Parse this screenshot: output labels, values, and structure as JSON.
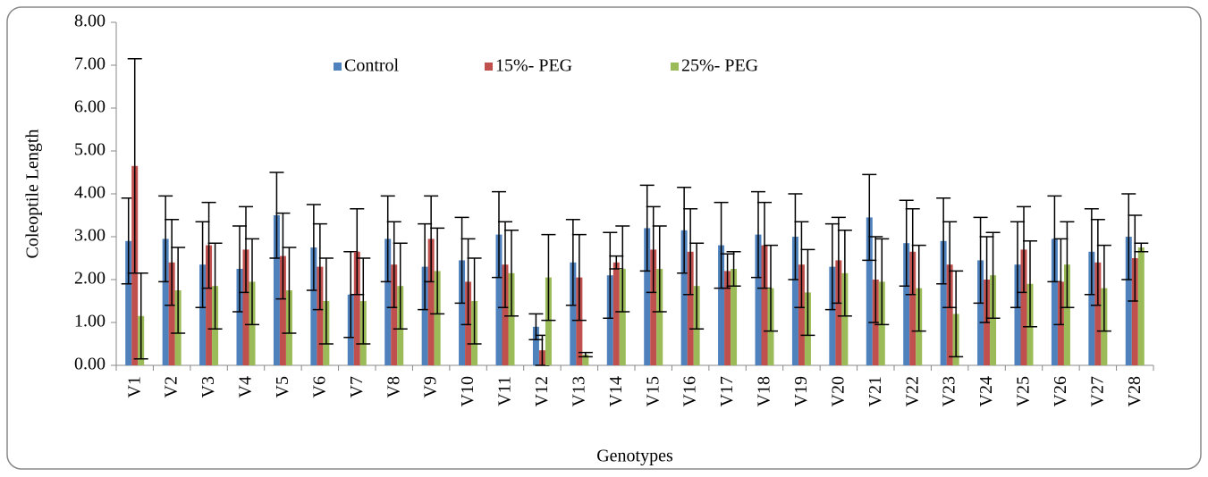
{
  "chart_data": {
    "type": "bar",
    "y_label": "Coleoptile  Length",
    "x_label": "Genotypes",
    "categories": [
      "V1",
      "V2",
      "V3",
      "V4",
      "V5",
      "V6",
      "V7",
      "V8",
      "V9",
      "V10",
      "V11",
      "V12",
      "V13",
      "V14",
      "V15",
      "V16",
      "V17",
      "V18",
      "V19",
      "V20",
      "V21",
      "V22",
      "V23",
      "V24",
      "V25",
      "V26",
      "V27",
      "V28"
    ],
    "series": [
      {
        "name": "Control",
        "color": "#4f81bd",
        "values": [
          2.9,
          2.95,
          2.35,
          2.25,
          3.5,
          2.75,
          1.65,
          2.95,
          2.3,
          2.45,
          3.05,
          0.9,
          2.4,
          2.1,
          3.2,
          3.15,
          2.8,
          3.05,
          3.0,
          2.3,
          3.45,
          2.85,
          2.9,
          2.45,
          2.35,
          2.95,
          2.65,
          3.0
        ],
        "errors": [
          1.0,
          1.0,
          1.0,
          1.0,
          1.0,
          1.0,
          1.0,
          1.0,
          1.0,
          1.0,
          1.0,
          0.3,
          1.0,
          1.0,
          1.0,
          1.0,
          1.0,
          1.0,
          1.0,
          1.0,
          1.0,
          1.0,
          1.0,
          1.0,
          1.0,
          1.0,
          1.0,
          1.0
        ]
      },
      {
        "name": "15%- PEG",
        "color": "#c0504d",
        "values": [
          4.65,
          2.4,
          2.8,
          2.7,
          2.55,
          2.3,
          2.65,
          2.35,
          2.95,
          1.95,
          2.35,
          0.35,
          2.05,
          2.4,
          2.7,
          2.65,
          2.2,
          2.8,
          2.35,
          2.45,
          2.0,
          2.65,
          2.35,
          2.0,
          2.7,
          1.95,
          2.4,
          2.5
        ],
        "errors": [
          2.5,
          1.0,
          1.0,
          1.0,
          1.0,
          1.0,
          1.0,
          1.0,
          1.0,
          1.0,
          1.0,
          0.35,
          1.0,
          0.15,
          1.0,
          1.0,
          0.4,
          1.0,
          1.0,
          1.0,
          1.0,
          1.0,
          1.0,
          1.0,
          1.0,
          1.0,
          1.0,
          1.0
        ]
      },
      {
        "name": "25%- PEG",
        "color": "#9bbb59",
        "values": [
          1.15,
          1.75,
          1.85,
          1.95,
          1.75,
          1.5,
          1.5,
          1.85,
          2.2,
          1.5,
          2.15,
          2.05,
          0.25,
          2.25,
          2.25,
          1.85,
          2.25,
          1.8,
          1.7,
          2.15,
          1.95,
          1.8,
          1.2,
          2.1,
          1.9,
          2.35,
          1.8,
          2.75
        ],
        "errors": [
          1.0,
          1.0,
          1.0,
          1.0,
          1.0,
          1.0,
          1.0,
          1.0,
          1.0,
          1.0,
          1.0,
          1.0,
          0.05,
          1.0,
          1.0,
          1.0,
          0.4,
          1.0,
          1.0,
          1.0,
          1.0,
          1.0,
          1.0,
          1.0,
          1.0,
          1.0,
          1.0,
          0.1
        ]
      }
    ],
    "ylim": [
      0,
      8
    ],
    "yticks": [
      {
        "value": 0,
        "label": "0.00"
      },
      {
        "value": 1,
        "label": "1.00"
      },
      {
        "value": 2,
        "label": "2.00"
      },
      {
        "value": 3,
        "label": "3.00"
      },
      {
        "value": 4,
        "label": "4.00"
      },
      {
        "value": 5,
        "label": "5.00"
      },
      {
        "value": 6,
        "label": "6.00"
      },
      {
        "value": 7,
        "label": "7.00"
      },
      {
        "value": 8,
        "label": "8.00"
      }
    ],
    "grid": false
  }
}
